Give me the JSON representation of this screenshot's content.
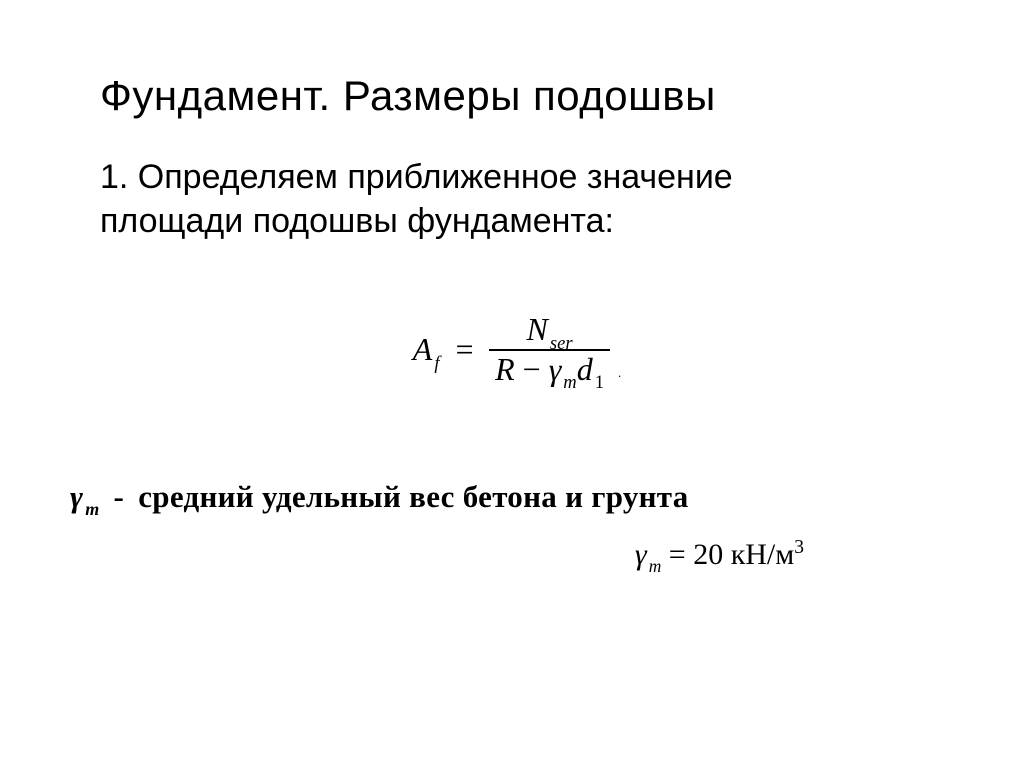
{
  "title": "Фундамент. Размеры подошвы",
  "body": "1. Определяем приближенное значение площади подошвы фундамента:",
  "formula": {
    "lhs_var": "A",
    "lhs_sub": "f",
    "eq": "=",
    "num_var": "N",
    "num_sub": "ser",
    "den_R": "R",
    "den_minus": " − ",
    "den_gamma": "γ",
    "den_gamma_sub": "m",
    "den_d": "d",
    "den_d_sub": "1",
    "period": "."
  },
  "definition": {
    "symbol_gamma": "γ",
    "symbol_sub": "m",
    "dash": "-",
    "text": "средний удельный вес бетона и грунта"
  },
  "value": {
    "gamma": "γ",
    "gamma_sub": "m",
    "eq": " = ",
    "number": "20",
    "unit": " кН/м",
    "exp": "3"
  },
  "style": {
    "background": "#ffffff",
    "text_color": "#000000",
    "title_fontsize": 42,
    "body_fontsize": 34,
    "formula_fontsize": 32,
    "definition_fontsize": 31,
    "value_fontsize": 30,
    "font_family_body": "Arial",
    "font_family_math": "Times New Roman"
  }
}
